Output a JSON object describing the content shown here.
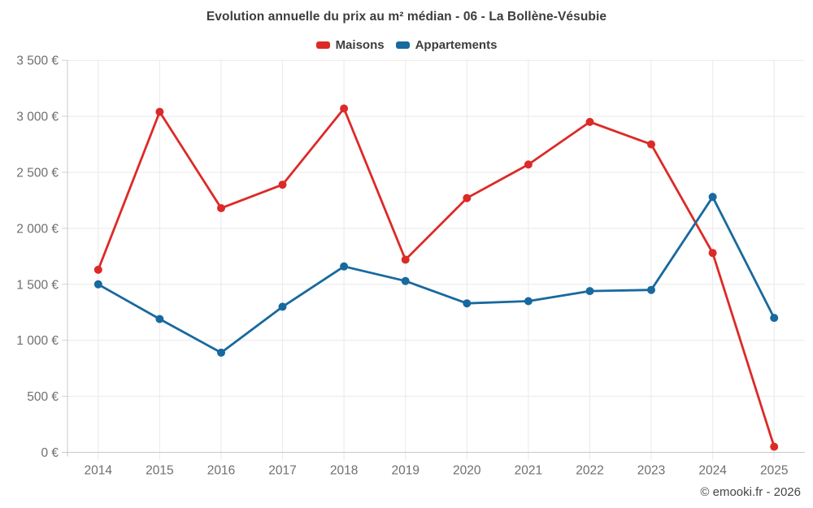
{
  "header": {
    "title": "Evolution annuelle du prix au m² médian - 06 - La Bollène-Vésubie"
  },
  "legend": {
    "items": [
      {
        "label": "Maisons",
        "color": "#dc2a27"
      },
      {
        "label": "Appartements",
        "color": "#17699e"
      }
    ]
  },
  "footer": {
    "credit": "© emooki.fr - 2026"
  },
  "colors": {
    "maisons": "#dc2a27",
    "appartements": "#17699e",
    "gridline": "#e9e9e9",
    "axis_line": "#c8c8c8",
    "tick": "#d2d2d2",
    "axis_label": "#6f6f6f"
  },
  "chart_data": {
    "type": "line",
    "title": "Evolution annuelle du prix au m² médian - 06 - La Bollène-Vésubie",
    "xlabel": "",
    "ylabel": "",
    "categories": [
      "2014",
      "2015",
      "2016",
      "2017",
      "2018",
      "2019",
      "2020",
      "2021",
      "2022",
      "2023",
      "2024",
      "2025"
    ],
    "series": [
      {
        "name": "Maisons",
        "color": "#dc2a27",
        "values": [
          1630,
          3040,
          2180,
          2390,
          3070,
          1720,
          2270,
          2570,
          2950,
          2750,
          1780,
          50
        ]
      },
      {
        "name": "Appartements",
        "color": "#17699e",
        "values": [
          1500,
          1190,
          890,
          1300,
          1660,
          1530,
          1330,
          1350,
          1440,
          1450,
          2280,
          1200
        ]
      }
    ],
    "ylim": [
      0,
      3500
    ],
    "ytick_step": 500,
    "ytick_labels": [
      "0 €",
      "500 €",
      "1 000 €",
      "1 500 €",
      "2 000 €",
      "2 500 €",
      "3 000 €",
      "3 500 €"
    ],
    "grid": true,
    "legend_position": "top"
  }
}
